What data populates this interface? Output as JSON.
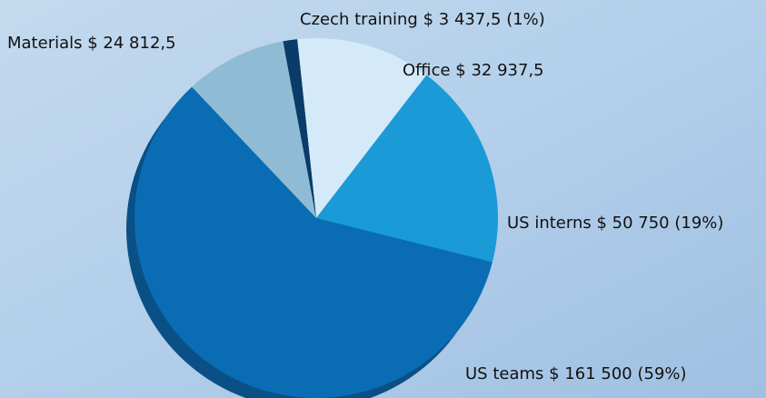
{
  "chart_data": {
    "type": "pie",
    "categories": [
      "Office",
      "US interns",
      "US teams",
      "Materials",
      "Czech training"
    ],
    "values": [
      32937.5,
      50750,
      161500,
      24812.5,
      3437.5
    ],
    "value_labels": [
      "$ 32 937,5",
      "$ 50 750 (19%)",
      "$ 161 500 (59%)",
      "$ 24 812,5",
      "$ 3 437,5 (1%)"
    ],
    "colors": [
      "#d4eaf8",
      "#1b9ad8",
      "#0a6db3",
      "#8fbcd4",
      "#0b3b68"
    ]
  }
}
